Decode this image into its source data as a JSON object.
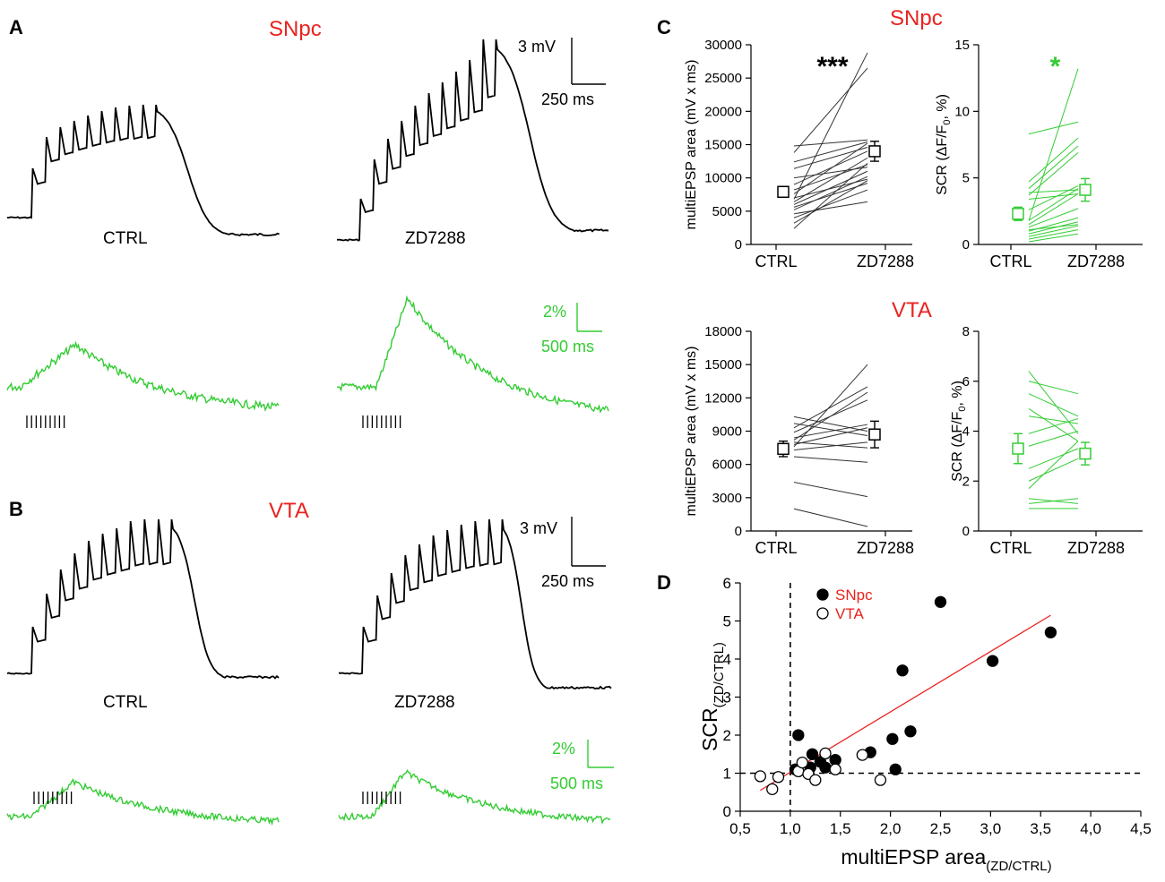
{
  "panels": {
    "A": {
      "letter": "A",
      "region": "SNpc",
      "ctrl_label": "CTRL",
      "zd_label": "ZD7288",
      "scale_mv": "3 mV",
      "scale_ms_v": "250 ms",
      "scale_pct": "2%",
      "scale_ms_f": "500 ms",
      "stim_count": 9
    },
    "B": {
      "letter": "B",
      "region": "VTA",
      "ctrl_label": "CTRL",
      "zd_label": "ZD7288",
      "scale_mv": "3 mV",
      "scale_ms_v": "250 ms",
      "scale_pct": "2%",
      "scale_ms_f": "500 ms",
      "stim_count": 9
    },
    "C": {
      "letter": "C",
      "region_top": "SNpc",
      "region_bottom": "VTA"
    },
    "D": {
      "letter": "D"
    }
  },
  "colors": {
    "region": "#e8231f",
    "trace_v": "#000000",
    "trace_f": "#33cc33",
    "fit": "#e8231f"
  },
  "chart_data": [
    {
      "id": "c-snpc-area",
      "type": "line",
      "paired": true,
      "ylabel": "multiEPSP area (mV x ms)",
      "ylim": [
        0,
        30000
      ],
      "yticks": [
        "0",
        "5000",
        "10000",
        "15000",
        "20000",
        "25000",
        "30000"
      ],
      "categories": [
        "CTRL",
        "ZD7288"
      ],
      "significance": "***",
      "pairs": [
        [
          2400,
          12200
        ],
        [
          3200,
          9600
        ],
        [
          4000,
          8200
        ],
        [
          4600,
          6400
        ],
        [
          5200,
          10200
        ],
        [
          5600,
          9200
        ],
        [
          6000,
          11000
        ],
        [
          6400,
          13000
        ],
        [
          7000,
          9800
        ],
        [
          7600,
          15200
        ],
        [
          8200,
          12000
        ],
        [
          9000,
          14000
        ],
        [
          10000,
          11600
        ],
        [
          11400,
          14600
        ],
        [
          12400,
          15400
        ],
        [
          13800,
          26500
        ],
        [
          14800,
          15700
        ],
        [
          6800,
          28800
        ]
      ],
      "mean": [
        7900,
        14000
      ],
      "sem": [
        800,
        1500
      ]
    },
    {
      "id": "c-snpc-scr",
      "type": "line",
      "paired": true,
      "ylabel": "SCR (ΔF/F0, %)",
      "ylim": [
        0,
        15
      ],
      "yticks": [
        "0",
        "5",
        "10",
        "15"
      ],
      "categories": [
        "CTRL",
        "ZD7288"
      ],
      "significance": "*",
      "pairs": [
        [
          0.2,
          0.8
        ],
        [
          0.4,
          1.1
        ],
        [
          0.6,
          1.4
        ],
        [
          0.8,
          1.7
        ],
        [
          1.0,
          2.0
        ],
        [
          1.1,
          1.5
        ],
        [
          1.3,
          2.7
        ],
        [
          1.5,
          3.8
        ],
        [
          1.8,
          4.2
        ],
        [
          2.6,
          4.4
        ],
        [
          3.4,
          3.8
        ],
        [
          3.7,
          6.9
        ],
        [
          3.9,
          4.1
        ],
        [
          4.2,
          7.4
        ],
        [
          4.7,
          8.0
        ],
        [
          8.3,
          9.2
        ],
        [
          1.8,
          13.2
        ]
      ],
      "mean": [
        2.3,
        4.1
      ],
      "sem": [
        0.5,
        0.85
      ]
    },
    {
      "id": "c-vta-area",
      "type": "line",
      "paired": true,
      "ylabel": "multiEPSP area (mV x ms)",
      "ylim": [
        0,
        18000
      ],
      "yticks": [
        "0",
        "3000",
        "6000",
        "9000",
        "12000",
        "15000",
        "18000"
      ],
      "categories": [
        "CTRL",
        "ZD7288"
      ],
      "pairs": [
        [
          2000,
          400
        ],
        [
          4400,
          3100
        ],
        [
          6700,
          6200
        ],
        [
          7300,
          8000
        ],
        [
          7800,
          9300
        ],
        [
          8000,
          7500
        ],
        [
          8400,
          9600
        ],
        [
          8900,
          11800
        ],
        [
          9300,
          13000
        ],
        [
          9700,
          8600
        ],
        [
          10300,
          9000
        ],
        [
          7600,
          15000
        ],
        [
          8200,
          12500
        ]
      ],
      "mean": [
        7400,
        8700
      ],
      "sem": [
        700,
        1200
      ]
    },
    {
      "id": "c-vta-scr",
      "type": "line",
      "paired": true,
      "ylabel": "SCR (ΔF/F0, %)",
      "ylim": [
        0,
        8
      ],
      "yticks": [
        "0",
        "2",
        "4",
        "6",
        "8"
      ],
      "categories": [
        "CTRL",
        "ZD7288"
      ],
      "pairs": [
        [
          0.9,
          0.9
        ],
        [
          1.1,
          1.3
        ],
        [
          1.3,
          1.1
        ],
        [
          1.7,
          3.6
        ],
        [
          2.0,
          2.9
        ],
        [
          2.5,
          3.3
        ],
        [
          3.4,
          4.0
        ],
        [
          3.9,
          4.5
        ],
        [
          4.6,
          4.3
        ],
        [
          4.9,
          3.6
        ],
        [
          5.5,
          4.6
        ],
        [
          6.0,
          5.5
        ],
        [
          6.4,
          3.9
        ]
      ],
      "mean": [
        3.3,
        3.1
      ],
      "sem": [
        0.6,
        0.45
      ]
    },
    {
      "id": "d-scatter",
      "type": "scatter",
      "xlabel": "multiEPSP area",
      "xlabel_sub": "(ZD/CTRL)",
      "ylabel": "SCR",
      "ylabel_sub": "(ZD/CTRL)",
      "xlim": [
        0.5,
        4.5
      ],
      "ylim": [
        0,
        6
      ],
      "xticks": [
        "0,5",
        "1,0",
        "1,5",
        "2,0",
        "2,5",
        "3,0",
        "3,5",
        "4,0",
        "4,5"
      ],
      "yticks": [
        "0",
        "1",
        "2",
        "3",
        "4",
        "5",
        "6"
      ],
      "ref_x": 1.0,
      "ref_y": 1.0,
      "fit": [
        [
          0.7,
          0.55
        ],
        [
          3.6,
          5.15
        ]
      ],
      "series": [
        {
          "name": "SNpc",
          "filled": true,
          "x": [
            1.05,
            1.08,
            1.2,
            1.22,
            1.3,
            1.35,
            1.45,
            1.8,
            2.02,
            2.05,
            2.12,
            2.2,
            2.5,
            3.02,
            3.6
          ],
          "y": [
            1.1,
            2.0,
            1.15,
            1.5,
            1.3,
            1.15,
            1.35,
            1.55,
            1.9,
            1.1,
            3.7,
            2.1,
            5.5,
            3.95,
            4.7
          ]
        },
        {
          "name": "VTA",
          "filled": false,
          "x": [
            0.7,
            0.82,
            0.88,
            1.08,
            1.12,
            1.18,
            1.25,
            1.35,
            1.45,
            1.72,
            1.9
          ],
          "y": [
            0.92,
            0.58,
            0.9,
            1.05,
            1.28,
            0.98,
            0.82,
            1.52,
            1.1,
            1.48,
            0.82
          ]
        }
      ]
    }
  ]
}
